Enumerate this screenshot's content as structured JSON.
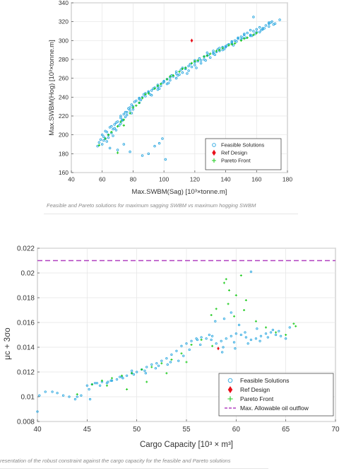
{
  "captions": {
    "top": "Feasible and Pareto solutions for maximum sagging SWBM vs maximum hogging SWBM",
    "bottom": "resentation of the robust constraint against the cargo capacity for the feasible and Pareto solutions"
  },
  "colors": {
    "feasible": "#2aa7e0",
    "ref": "#e8101a",
    "pareto": "#22cc22",
    "allowable": "#b040c0",
    "grid": "#e4e4e4",
    "axis": "#444444"
  },
  "chart_data": [
    {
      "type": "scatter",
      "title": "",
      "xlabel": "Max.SWBM(Sag) [10³×tonne.m]",
      "ylabel": "Max.SWBM(Hog) [10³×tonne.m]",
      "xlim": [
        40,
        180
      ],
      "ylim": [
        160,
        340
      ],
      "xticks": [
        40,
        60,
        80,
        100,
        120,
        140,
        160,
        180
      ],
      "yticks": [
        160,
        180,
        200,
        220,
        240,
        260,
        280,
        300,
        320,
        340
      ],
      "grid": true,
      "legend": "bottom-right",
      "series": [
        {
          "name": "Feasible Solutions",
          "marker": "circle",
          "x": [
            57,
            58,
            59,
            60,
            61,
            62,
            62,
            63,
            64,
            65,
            65,
            66,
            67,
            68,
            69,
            70,
            71,
            72,
            73,
            74,
            75,
            76,
            77,
            78,
            79,
            80,
            82,
            84,
            86,
            88,
            90,
            92,
            94,
            96,
            98,
            100,
            102,
            104,
            106,
            108,
            110,
            112,
            114,
            116,
            118,
            120,
            122,
            124,
            126,
            128,
            130,
            132,
            134,
            136,
            138,
            140,
            142,
            144,
            146,
            148,
            150,
            152,
            154,
            156,
            158,
            160,
            162,
            164,
            166,
            168,
            170,
            60,
            63,
            66,
            69,
            72,
            75,
            78,
            81,
            84,
            87,
            90,
            93,
            96,
            99,
            102,
            105,
            108,
            111,
            114,
            117,
            120,
            123,
            126,
            129,
            132,
            135,
            138,
            141,
            144,
            147,
            150,
            153,
            156,
            159,
            162,
            165,
            168,
            171,
            64,
            68,
            72,
            76,
            80,
            84,
            88,
            92,
            96,
            100,
            104,
            108,
            112,
            116,
            120,
            124,
            128,
            132,
            136,
            140,
            144,
            148,
            152,
            156,
            160,
            164,
            168,
            61,
            67,
            73,
            79,
            85,
            91,
            97,
            103,
            109,
            115,
            121,
            127,
            133,
            139,
            145,
            151,
            157,
            163,
            169,
            99,
            97,
            94,
            78,
            74,
            90,
            101,
            70,
            86,
            175,
            172,
            158
          ],
          "y": [
            188,
            192,
            195,
            190,
            198,
            196,
            204,
            193,
            200,
            208,
            186,
            202,
            206,
            211,
            205,
            214,
            210,
            218,
            215,
            222,
            219,
            224,
            228,
            226,
            232,
            230,
            236,
            238,
            240,
            244,
            246,
            242,
            250,
            248,
            252,
            256,
            254,
            258,
            262,
            260,
            264,
            266,
            270,
            268,
            272,
            274,
            278,
            276,
            280,
            284,
            282,
            286,
            288,
            292,
            290,
            294,
            296,
            298,
            300,
            302,
            304,
            306,
            308,
            306,
            310,
            312,
            314,
            312,
            316,
            318,
            320,
            200,
            203,
            209,
            213,
            220,
            224,
            229,
            235,
            239,
            243,
            245,
            249,
            251,
            255,
            259,
            263,
            267,
            269,
            271,
            275,
            279,
            281,
            283,
            285,
            289,
            291,
            293,
            295,
            297,
            299,
            301,
            303,
            305,
            307,
            309,
            313,
            315,
            317,
            197,
            207,
            212,
            221,
            227,
            234,
            241,
            247,
            253,
            257,
            261,
            265,
            271,
            273,
            277,
            279,
            287,
            287,
            289,
            293,
            299,
            303,
            307,
            311,
            309,
            313,
            319,
            194,
            199,
            216,
            223,
            237,
            243,
            249,
            255,
            263,
            265,
            271,
            279,
            285,
            291,
            295,
            303,
            305,
            311,
            319,
            196,
            191,
            188,
            182,
            190,
            180,
            174,
            184,
            178,
            322,
            318,
            325
          ]
        },
        {
          "name": "Ref Design",
          "marker": "diamond",
          "x": [
            118
          ],
          "y": [
            300
          ]
        },
        {
          "name": "Pareto Front",
          "marker": "plus",
          "x": [
            58,
            62,
            66,
            70,
            74,
            78,
            82,
            86,
            90,
            94,
            98,
            102,
            106,
            110,
            114,
            118,
            122,
            126,
            130,
            134,
            138,
            142,
            146,
            150,
            154,
            158,
            160,
            64,
            72,
            80,
            88,
            96,
            104,
            112,
            120,
            128,
            136,
            144,
            152,
            74,
            84,
            70
          ],
          "y": [
            189,
            196,
            203,
            209,
            216,
            223,
            231,
            239,
            244,
            249,
            254,
            259,
            263,
            267,
            271,
            276,
            279,
            283,
            286,
            289,
            292,
            295,
            297,
            300,
            303,
            306,
            308,
            200,
            214,
            229,
            243,
            252,
            262,
            270,
            278,
            284,
            290,
            296,
            302,
            210,
            234,
            181
          ]
        }
      ]
    },
    {
      "type": "scatter",
      "title": "",
      "xlabel": "Cargo Capacity [10³ × m³]",
      "ylabel": "μc + 3σo",
      "xlim": [
        40,
        70
      ],
      "ylim": [
        0.008,
        0.022
      ],
      "xticks": [
        40,
        45,
        50,
        55,
        60,
        65,
        70
      ],
      "yticks": [
        0.008,
        0.01,
        0.012,
        0.014,
        0.016,
        0.018,
        0.02,
        0.022
      ],
      "grid": true,
      "legend": "bottom-right",
      "series": [
        {
          "name": "Feasible Solutions",
          "marker": "circle",
          "x": [
            40.2,
            40.8,
            41.5,
            42.0,
            42.6,
            43.2,
            43.8,
            44.4,
            45.0,
            45.5,
            46.0,
            46.5,
            47.0,
            47.5,
            48.0,
            48.5,
            49.0,
            49.5,
            50.0,
            50.5,
            51.0,
            51.5,
            52.0,
            52.5,
            53.0,
            53.5,
            54.0,
            54.5,
            55.0,
            55.5,
            56.0,
            56.5,
            57.0,
            57.5,
            58.0,
            58.5,
            59.0,
            59.5,
            60.0,
            60.5,
            61.0,
            61.5,
            62.0,
            62.5,
            63.0,
            63.5,
            64.0,
            64.5,
            65.0,
            44.0,
            45.2,
            46.3,
            47.4,
            48.6,
            49.7,
            50.8,
            51.9,
            53.1,
            54.2,
            55.3,
            56.4,
            57.6,
            58.7,
            59.8,
            60.9,
            62.1,
            63.2,
            64.3,
            65.4,
            45.8,
            47.1,
            48.3,
            49.5,
            50.9,
            52.2,
            53.4,
            54.7,
            56.1,
            57.3,
            58.6,
            59.9,
            61.2,
            62.4,
            63.7,
            40.0,
            45.3,
            61.5,
            58.8,
            59.5,
            60.3,
            57.9
          ],
          "y": [
            0.0101,
            0.0104,
            0.0104,
            0.0103,
            0.0101,
            0.01,
            0.0098,
            0.0101,
            0.0109,
            0.011,
            0.0111,
            0.0112,
            0.0111,
            0.0113,
            0.0114,
            0.0116,
            0.0117,
            0.0119,
            0.012,
            0.0122,
            0.0124,
            0.0126,
            0.0127,
            0.0129,
            0.0131,
            0.0134,
            0.0137,
            0.0141,
            0.0143,
            0.0145,
            0.0147,
            0.0148,
            0.0147,
            0.0146,
            0.0143,
            0.0145,
            0.0147,
            0.0149,
            0.0151,
            0.015,
            0.0148,
            0.0146,
            0.0147,
            0.0149,
            0.0151,
            0.0152,
            0.015,
            0.0149,
            0.0147,
            0.01,
            0.0106,
            0.0109,
            0.0113,
            0.0115,
            0.0118,
            0.0121,
            0.0123,
            0.0126,
            0.0129,
            0.0138,
            0.0142,
            0.0149,
            0.014,
            0.0144,
            0.0152,
            0.0155,
            0.0148,
            0.0153,
            0.0156,
            0.0111,
            0.0112,
            0.0116,
            0.0121,
            0.0119,
            0.0125,
            0.0128,
            0.0133,
            0.0146,
            0.015,
            0.0136,
            0.0139,
            0.0143,
            0.0145,
            0.0154,
            0.0088,
            0.0098,
            0.0201,
            0.0163,
            0.0168,
            0.0158,
            0.0161
          ]
        },
        {
          "name": "Ref Design",
          "marker": "diamond",
          "x": [
            58.2
          ],
          "y": [
            0.0139
          ]
        },
        {
          "name": "Pareto Front",
          "marker": "plus",
          "x": [
            44.0,
            45.5,
            46.5,
            47.5,
            48.5,
            49.5,
            50.5,
            51.5,
            52.5,
            53.5,
            54.5,
            55.5,
            56.5,
            57.5,
            58.0,
            59.0,
            60.0,
            61.0,
            62.0,
            63.0,
            64.0,
            65.0,
            66.0,
            58.8,
            59.2,
            59.8,
            60.5,
            57.6,
            55.0,
            53.0,
            51.0,
            49.0,
            47.0,
            59.3,
            60.8,
            65.8
          ],
          "y": [
            0.0102,
            0.011,
            0.0113,
            0.0115,
            0.0117,
            0.0119,
            0.0122,
            0.0124,
            0.0127,
            0.013,
            0.0135,
            0.0142,
            0.0146,
            0.0166,
            0.0171,
            0.0195,
            0.0182,
            0.0178,
            0.0161,
            0.0156,
            0.0152,
            0.015,
            0.0157,
            0.0192,
            0.0175,
            0.0165,
            0.0198,
            0.0141,
            0.0128,
            0.0119,
            0.0112,
            0.0106,
            0.0109,
            0.0186,
            0.017,
            0.0159
          ]
        }
      ],
      "reference_line": {
        "name": "Max. Allowable oil outflow",
        "y": 0.021
      }
    }
  ]
}
